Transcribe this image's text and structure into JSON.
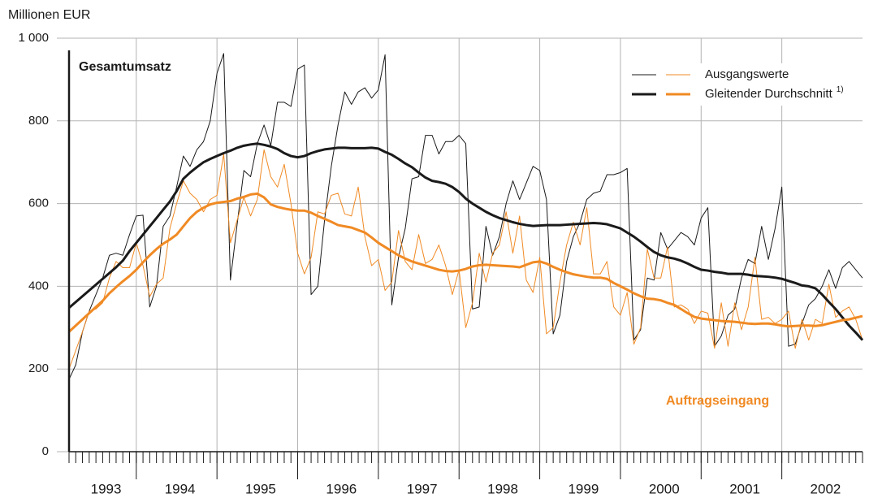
{
  "chart_data": {
    "type": "line",
    "y_axis_label": "Millionen EUR",
    "categories": [
      null,
      null,
      null,
      null,
      null,
      "1993",
      null,
      null,
      null,
      null,
      null,
      null,
      null,
      null,
      null,
      null,
      "1994",
      null,
      null,
      null,
      null,
      null,
      null,
      null,
      null,
      null,
      null,
      null,
      "1995",
      null,
      null,
      null,
      null,
      null,
      null,
      null,
      null,
      null,
      null,
      null,
      "1996",
      null,
      null,
      null,
      null,
      null,
      null,
      null,
      null,
      null,
      null,
      null,
      "1997",
      null,
      null,
      null,
      null,
      null,
      null,
      null,
      null,
      null,
      null,
      null,
      "1998",
      null,
      null,
      null,
      null,
      null,
      null,
      null,
      null,
      null,
      null,
      null,
      "1999",
      null,
      null,
      null,
      null,
      null,
      null,
      null,
      null,
      null,
      null,
      null,
      "2000",
      null,
      null,
      null,
      null,
      null,
      null,
      null,
      null,
      null,
      null,
      null,
      "2001",
      null,
      null,
      null,
      null,
      null,
      null,
      null,
      null,
      null,
      null,
      null,
      "2002",
      null,
      null,
      null,
      null,
      null,
      null
    ],
    "ylim": [
      0,
      1000
    ],
    "yticks": [
      0,
      200,
      400,
      600,
      800,
      {
        "value": 1000,
        "label": "1 000"
      }
    ],
    "grid": true,
    "legend": [
      {
        "label": "Ausgangswerte"
      },
      {
        "label": "Gleitender Durchschnitt",
        "note": "1)"
      }
    ],
    "series": [
      {
        "name": "Gesamtumsatz",
        "color": "#1a1a1a",
        "values": [
          175,
          210,
          290,
          340,
          380,
          420,
          475,
          480,
          475,
          525,
          570,
          572,
          350,
          400,
          545,
          570,
          640,
          715,
          690,
          730,
          750,
          800,
          915,
          963,
          415,
          550,
          680,
          665,
          745,
          790,
          740,
          845,
          845,
          835,
          925,
          935,
          380,
          400,
          560,
          690,
          790,
          870,
          840,
          870,
          880,
          855,
          875,
          960,
          355,
          470,
          540,
          660,
          665,
          765,
          765,
          720,
          750,
          750,
          765,
          745,
          345,
          350,
          545,
          475,
          520,
          600,
          655,
          610,
          650,
          690,
          680,
          610,
          285,
          330,
          460,
          520,
          555,
          610,
          625,
          630,
          670,
          670,
          675,
          685,
          270,
          295,
          420,
          415,
          530,
          490,
          510,
          530,
          520,
          500,
          565,
          590,
          255,
          280,
          330,
          345,
          420,
          465,
          455,
          545,
          465,
          540,
          640,
          255,
          260,
          310,
          355,
          370,
          400,
          440,
          395,
          445,
          460,
          440,
          420
        ],
        "average": [
          348,
          362,
          376,
          390,
          404,
          418,
          432,
          446,
          462,
          485,
          505,
          525,
          545,
          565,
          585,
          605,
          630,
          660,
          675,
          688,
          700,
          708,
          715,
          722,
          728,
          735,
          740,
          743,
          745,
          742,
          738,
          732,
          722,
          715,
          712,
          715,
          722,
          727,
          731,
          733,
          735,
          735,
          734,
          734,
          734,
          735,
          733,
          725,
          718,
          708,
          697,
          688,
          675,
          663,
          655,
          652,
          648,
          640,
          628,
          612,
          600,
          590,
          580,
          572,
          565,
          560,
          555,
          551,
          548,
          546,
          547,
          548,
          548,
          548,
          549,
          550,
          551,
          552,
          553,
          552,
          550,
          545,
          540,
          530,
          520,
          508,
          495,
          483,
          475,
          470,
          467,
          462,
          455,
          447,
          440,
          438,
          435,
          433,
          430,
          430,
          430,
          428,
          425,
          424,
          423,
          421,
          418,
          413,
          408,
          402,
          400,
          395,
          380,
          362,
          345,
          325,
          305,
          288,
          270
        ]
      },
      {
        "name": "Auftragseingang",
        "color": "#f08a24",
        "values": [
          200,
          245,
          290,
          340,
          345,
          360,
          420,
          460,
          445,
          445,
          505,
          450,
          375,
          405,
          420,
          540,
          600,
          655,
          625,
          610,
          580,
          610,
          620,
          720,
          505,
          560,
          615,
          570,
          610,
          730,
          665,
          640,
          695,
          600,
          480,
          430,
          470,
          580,
          575,
          620,
          625,
          575,
          570,
          640,
          520,
          450,
          465,
          390,
          410,
          535,
          460,
          440,
          525,
          455,
          465,
          500,
          450,
          380,
          440,
          300,
          360,
          480,
          410,
          480,
          500,
          580,
          480,
          570,
          415,
          385,
          470,
          285,
          300,
          410,
          500,
          555,
          500,
          590,
          430,
          430,
          460,
          350,
          330,
          385,
          260,
          300,
          490,
          420,
          420,
          495,
          350,
          355,
          345,
          310,
          340,
          335,
          250,
          360,
          255,
          360,
          295,
          350,
          470,
          320,
          325,
          310,
          320,
          340,
          250,
          320,
          270,
          320,
          310,
          405,
          325,
          340,
          350,
          320,
          270
        ],
        "average": [
          290,
          305,
          320,
          335,
          350,
          365,
          383,
          398,
          412,
          425,
          440,
          458,
          475,
          490,
          503,
          513,
          525,
          545,
          565,
          580,
          590,
          598,
          602,
          604,
          606,
          612,
          616,
          622,
          624,
          615,
          598,
          592,
          588,
          585,
          583,
          583,
          578,
          570,
          563,
          556,
          548,
          545,
          542,
          536,
          530,
          518,
          505,
          495,
          485,
          475,
          467,
          460,
          455,
          450,
          445,
          440,
          437,
          436,
          438,
          442,
          448,
          451,
          452,
          451,
          450,
          449,
          448,
          446,
          452,
          458,
          460,
          455,
          447,
          440,
          434,
          429,
          426,
          423,
          421,
          421,
          418,
          408,
          400,
          392,
          383,
          376,
          370,
          369,
          366,
          360,
          355,
          345,
          335,
          326,
          322,
          320,
          318,
          316,
          315,
          314,
          312,
          310,
          309,
          310,
          310,
          308,
          305,
          303,
          304,
          305,
          305,
          304,
          306,
          310,
          314,
          318,
          320,
          324,
          328
        ]
      }
    ]
  }
}
